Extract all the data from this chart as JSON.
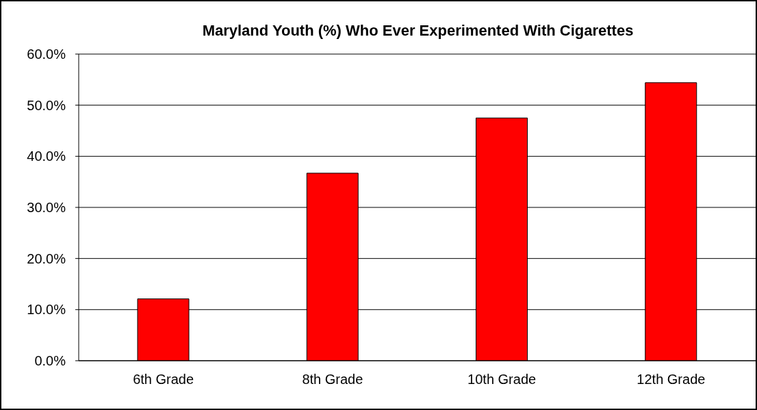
{
  "chart_data": {
    "type": "bar",
    "title": "Maryland Youth (%) Who Ever Experimented With Cigarettes",
    "categories": [
      "6th Grade",
      "8th Grade",
      "10th Grade",
      "12th Grade"
    ],
    "values": [
      12.1,
      36.7,
      47.5,
      54.4
    ],
    "color": "#ff0000",
    "ylim": [
      0,
      60
    ],
    "yticks": [
      {
        "value": 0,
        "label": "0.0%"
      },
      {
        "value": 10,
        "label": "10.0%"
      },
      {
        "value": 20,
        "label": "20.0%"
      },
      {
        "value": 30,
        "label": "30.0%"
      },
      {
        "value": 40,
        "label": "40.0%"
      },
      {
        "value": 50,
        "label": "50.0%"
      },
      {
        "value": 60,
        "label": "60.0%"
      }
    ],
    "grid": "y"
  }
}
